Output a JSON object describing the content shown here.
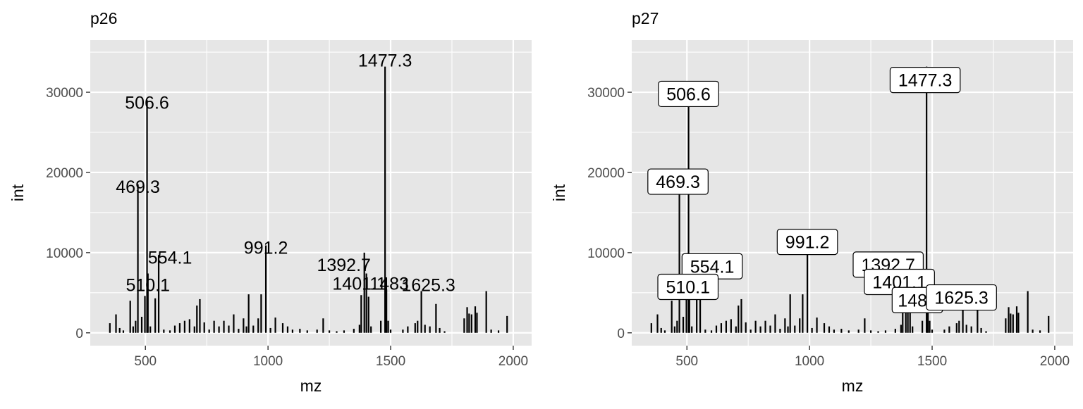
{
  "chart_data": [
    {
      "type": "bar",
      "title": "p26",
      "xlabel": "mz",
      "ylabel": "int",
      "xlim": [
        275,
        2075
      ],
      "ylim": [
        -1600,
        36500
      ],
      "x_ticks": [
        500,
        1000,
        1500,
        2000
      ],
      "y_ticks": [
        0,
        10000,
        20000,
        30000
      ],
      "x_tick_labels": [
        "500",
        "1000",
        "1500",
        "2000"
      ],
      "y_tick_labels": [
        "0",
        "10000",
        "20000",
        "30000"
      ],
      "label_style": "text",
      "peaks": [
        {
          "mz": 355,
          "int": 1200
        },
        {
          "mz": 380,
          "int": 2300
        },
        {
          "mz": 395,
          "int": 600
        },
        {
          "mz": 410,
          "int": 300
        },
        {
          "mz": 438,
          "int": 4000
        },
        {
          "mz": 450,
          "int": 800
        },
        {
          "mz": 460,
          "int": 1500
        },
        {
          "mz": 469.3,
          "int": 18500
        },
        {
          "mz": 485,
          "int": 2000
        },
        {
          "mz": 498,
          "int": 4600
        },
        {
          "mz": 506.6,
          "int": 29000
        },
        {
          "mz": 510.1,
          "int": 7400
        },
        {
          "mz": 520,
          "int": 800
        },
        {
          "mz": 540,
          "int": 4300
        },
        {
          "mz": 554.1,
          "int": 9700
        },
        {
          "mz": 575,
          "int": 400
        },
        {
          "mz": 600,
          "int": 300
        },
        {
          "mz": 620,
          "int": 900
        },
        {
          "mz": 640,
          "int": 1200
        },
        {
          "mz": 660,
          "int": 1500
        },
        {
          "mz": 680,
          "int": 1700
        },
        {
          "mz": 700,
          "int": 800
        },
        {
          "mz": 710,
          "int": 3400
        },
        {
          "mz": 722,
          "int": 4200
        },
        {
          "mz": 740,
          "int": 1300
        },
        {
          "mz": 760,
          "int": 400
        },
        {
          "mz": 780,
          "int": 1500
        },
        {
          "mz": 800,
          "int": 800
        },
        {
          "mz": 820,
          "int": 1500
        },
        {
          "mz": 840,
          "int": 900
        },
        {
          "mz": 860,
          "int": 2300
        },
        {
          "mz": 880,
          "int": 500
        },
        {
          "mz": 900,
          "int": 1800
        },
        {
          "mz": 912,
          "int": 800
        },
        {
          "mz": 921,
          "int": 4800
        },
        {
          "mz": 940,
          "int": 900
        },
        {
          "mz": 960,
          "int": 1800
        },
        {
          "mz": 972,
          "int": 4800
        },
        {
          "mz": 991.2,
          "int": 10900
        },
        {
          "mz": 1010,
          "int": 600
        },
        {
          "mz": 1030,
          "int": 1900
        },
        {
          "mz": 1060,
          "int": 1200
        },
        {
          "mz": 1080,
          "int": 800
        },
        {
          "mz": 1100,
          "int": 400
        },
        {
          "mz": 1130,
          "int": 500
        },
        {
          "mz": 1160,
          "int": 300
        },
        {
          "mz": 1200,
          "int": 400
        },
        {
          "mz": 1225,
          "int": 1800
        },
        {
          "mz": 1250,
          "int": 300
        },
        {
          "mz": 1280,
          "int": 200
        },
        {
          "mz": 1310,
          "int": 300
        },
        {
          "mz": 1350,
          "int": 500
        },
        {
          "mz": 1373,
          "int": 1000
        },
        {
          "mz": 1380,
          "int": 4700
        },
        {
          "mz": 1392.7,
          "int": 10000
        },
        {
          "mz": 1401.1,
          "int": 7400
        },
        {
          "mz": 1410,
          "int": 4500
        },
        {
          "mz": 1420,
          "int": 800
        },
        {
          "mz": 1460,
          "int": 1500
        },
        {
          "mz": 1477.3,
          "int": 33200
        },
        {
          "mz": 1483,
          "int": 5400
        },
        {
          "mz": 1490,
          "int": 1500
        },
        {
          "mz": 1500,
          "int": 400
        },
        {
          "mz": 1550,
          "int": 400
        },
        {
          "mz": 1570,
          "int": 800
        },
        {
          "mz": 1600,
          "int": 1200
        },
        {
          "mz": 1610,
          "int": 1500
        },
        {
          "mz": 1625.3,
          "int": 5200
        },
        {
          "mz": 1640,
          "int": 1000
        },
        {
          "mz": 1660,
          "int": 800
        },
        {
          "mz": 1685,
          "int": 3600
        },
        {
          "mz": 1700,
          "int": 600
        },
        {
          "mz": 1720,
          "int": 200
        },
        {
          "mz": 1800,
          "int": 1800
        },
        {
          "mz": 1812,
          "int": 3200
        },
        {
          "mz": 1820,
          "int": 2400
        },
        {
          "mz": 1830,
          "int": 2300
        },
        {
          "mz": 1845,
          "int": 3300
        },
        {
          "mz": 1852,
          "int": 2500
        },
        {
          "mz": 1890,
          "int": 5200
        },
        {
          "mz": 1910,
          "int": 400
        },
        {
          "mz": 1940,
          "int": 300
        },
        {
          "mz": 1975,
          "int": 2100
        }
      ],
      "annotations": [
        {
          "mz": 506.6,
          "int": 29000,
          "text": "506.6"
        },
        {
          "mz": 469.3,
          "int": 18500,
          "text": "469.3"
        },
        {
          "mz": 554.1,
          "int": 9700,
          "text": "554.1"
        },
        {
          "mz": 510.1,
          "int": 7400,
          "text": "510.1"
        },
        {
          "mz": 991.2,
          "int": 10900,
          "text": "991.2"
        },
        {
          "mz": 1477.3,
          "int": 33200,
          "text": "1477.3"
        },
        {
          "mz": 1392.7,
          "int": 10000,
          "text": "1392.7"
        },
        {
          "mz": 1401.1,
          "int": 7400,
          "text": "1401.1"
        },
        {
          "mz": 1483,
          "int": 5400,
          "text": "1483"
        },
        {
          "mz": 1625.3,
          "int": 5200,
          "text": "1625.3"
        }
      ]
    },
    {
      "type": "bar",
      "title": "p27",
      "xlabel": "mz",
      "ylabel": "int",
      "xlim": [
        275,
        2075
      ],
      "ylim": [
        -1600,
        36500
      ],
      "x_ticks": [
        500,
        1000,
        1500,
        2000
      ],
      "y_ticks": [
        0,
        10000,
        20000,
        30000
      ],
      "x_tick_labels": [
        "500",
        "1000",
        "1500",
        "2000"
      ],
      "y_tick_labels": [
        "0",
        "10000",
        "20000",
        "30000"
      ],
      "label_style": "boxed",
      "peaks": [
        {
          "mz": 355,
          "int": 1200
        },
        {
          "mz": 380,
          "int": 2300
        },
        {
          "mz": 395,
          "int": 600
        },
        {
          "mz": 410,
          "int": 300
        },
        {
          "mz": 438,
          "int": 4000
        },
        {
          "mz": 450,
          "int": 800
        },
        {
          "mz": 460,
          "int": 1500
        },
        {
          "mz": 469.3,
          "int": 18500
        },
        {
          "mz": 485,
          "int": 2000
        },
        {
          "mz": 498,
          "int": 4600
        },
        {
          "mz": 506.6,
          "int": 29000
        },
        {
          "mz": 510.1,
          "int": 7400
        },
        {
          "mz": 520,
          "int": 800
        },
        {
          "mz": 540,
          "int": 4300
        },
        {
          "mz": 554.1,
          "int": 9700
        },
        {
          "mz": 575,
          "int": 400
        },
        {
          "mz": 600,
          "int": 300
        },
        {
          "mz": 620,
          "int": 900
        },
        {
          "mz": 640,
          "int": 1200
        },
        {
          "mz": 660,
          "int": 1500
        },
        {
          "mz": 680,
          "int": 1700
        },
        {
          "mz": 700,
          "int": 800
        },
        {
          "mz": 710,
          "int": 3400
        },
        {
          "mz": 722,
          "int": 4200
        },
        {
          "mz": 740,
          "int": 1300
        },
        {
          "mz": 760,
          "int": 400
        },
        {
          "mz": 780,
          "int": 1500
        },
        {
          "mz": 800,
          "int": 800
        },
        {
          "mz": 820,
          "int": 1500
        },
        {
          "mz": 840,
          "int": 900
        },
        {
          "mz": 860,
          "int": 2300
        },
        {
          "mz": 880,
          "int": 500
        },
        {
          "mz": 900,
          "int": 1800
        },
        {
          "mz": 912,
          "int": 800
        },
        {
          "mz": 921,
          "int": 4800
        },
        {
          "mz": 940,
          "int": 900
        },
        {
          "mz": 960,
          "int": 1800
        },
        {
          "mz": 972,
          "int": 4800
        },
        {
          "mz": 991.2,
          "int": 10900
        },
        {
          "mz": 1010,
          "int": 600
        },
        {
          "mz": 1030,
          "int": 1900
        },
        {
          "mz": 1060,
          "int": 1200
        },
        {
          "mz": 1080,
          "int": 800
        },
        {
          "mz": 1100,
          "int": 400
        },
        {
          "mz": 1130,
          "int": 500
        },
        {
          "mz": 1160,
          "int": 300
        },
        {
          "mz": 1200,
          "int": 400
        },
        {
          "mz": 1225,
          "int": 1800
        },
        {
          "mz": 1250,
          "int": 300
        },
        {
          "mz": 1280,
          "int": 200
        },
        {
          "mz": 1310,
          "int": 300
        },
        {
          "mz": 1350,
          "int": 500
        },
        {
          "mz": 1373,
          "int": 1000
        },
        {
          "mz": 1380,
          "int": 4700
        },
        {
          "mz": 1392.7,
          "int": 10000
        },
        {
          "mz": 1401.1,
          "int": 7400
        },
        {
          "mz": 1410,
          "int": 4500
        },
        {
          "mz": 1420,
          "int": 800
        },
        {
          "mz": 1460,
          "int": 1500
        },
        {
          "mz": 1477.3,
          "int": 33200
        },
        {
          "mz": 1483,
          "int": 5400
        },
        {
          "mz": 1490,
          "int": 1500
        },
        {
          "mz": 1500,
          "int": 400
        },
        {
          "mz": 1550,
          "int": 400
        },
        {
          "mz": 1570,
          "int": 800
        },
        {
          "mz": 1600,
          "int": 1200
        },
        {
          "mz": 1610,
          "int": 1500
        },
        {
          "mz": 1625.3,
          "int": 5200
        },
        {
          "mz": 1640,
          "int": 1000
        },
        {
          "mz": 1660,
          "int": 800
        },
        {
          "mz": 1685,
          "int": 3600
        },
        {
          "mz": 1700,
          "int": 600
        },
        {
          "mz": 1720,
          "int": 200
        },
        {
          "mz": 1800,
          "int": 1800
        },
        {
          "mz": 1812,
          "int": 3200
        },
        {
          "mz": 1820,
          "int": 2400
        },
        {
          "mz": 1830,
          "int": 2300
        },
        {
          "mz": 1845,
          "int": 3300
        },
        {
          "mz": 1852,
          "int": 2500
        },
        {
          "mz": 1890,
          "int": 5200
        },
        {
          "mz": 1910,
          "int": 400
        },
        {
          "mz": 1940,
          "int": 300
        },
        {
          "mz": 1975,
          "int": 2100
        }
      ],
      "annotations": [
        {
          "mz": 506.6,
          "int": 29000,
          "text": "506.6"
        },
        {
          "mz": 469.3,
          "int": 18500,
          "text": "469.3"
        },
        {
          "mz": 554.1,
          "int": 9700,
          "text": "554.1"
        },
        {
          "mz": 510.1,
          "int": 7400,
          "text": "510.1"
        },
        {
          "mz": 991.2,
          "int": 10900,
          "text": "991.2"
        },
        {
          "mz": 1477.3,
          "int": 33200,
          "text": "1477.3"
        },
        {
          "mz": 1392.7,
          "int": 10000,
          "text": "1392.7"
        },
        {
          "mz": 1401.1,
          "int": 7400,
          "text": "1401.1"
        },
        {
          "mz": 1483,
          "int": 5400,
          "text": "1483"
        },
        {
          "mz": 1625.3,
          "int": 5200,
          "text": "1625.3"
        }
      ]
    }
  ]
}
